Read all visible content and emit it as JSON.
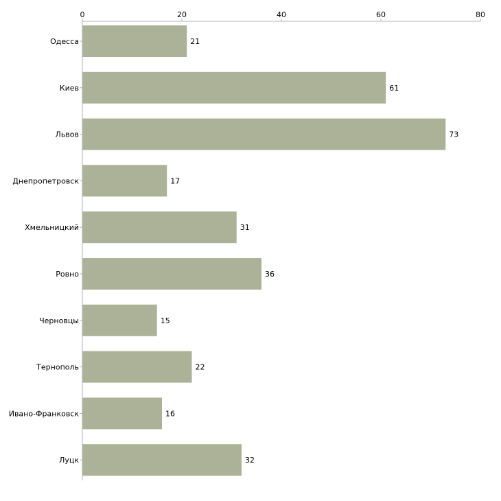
{
  "chart_data": {
    "type": "bar",
    "orientation": "horizontal",
    "title": "",
    "xlabel": "",
    "ylabel": "",
    "categories": [
      "Одесса",
      "Киев",
      "Львов",
      "Днепропетровск",
      "Хмельницкий",
      "Ровно",
      "Черновцы",
      "Тернополь",
      "Ивано-Франковск",
      "Луцк"
    ],
    "values": [
      21,
      61,
      73,
      17,
      31,
      36,
      15,
      22,
      16,
      32
    ],
    "xlim": [
      0,
      80
    ],
    "xticks": [
      0,
      20,
      40,
      60,
      80
    ],
    "xtick_labels": [
      "0",
      "20",
      "40",
      "60",
      "80"
    ],
    "axis_position": "top",
    "grid": false,
    "legend": "none",
    "bar_color": "#acb297",
    "data_labels": true
  }
}
